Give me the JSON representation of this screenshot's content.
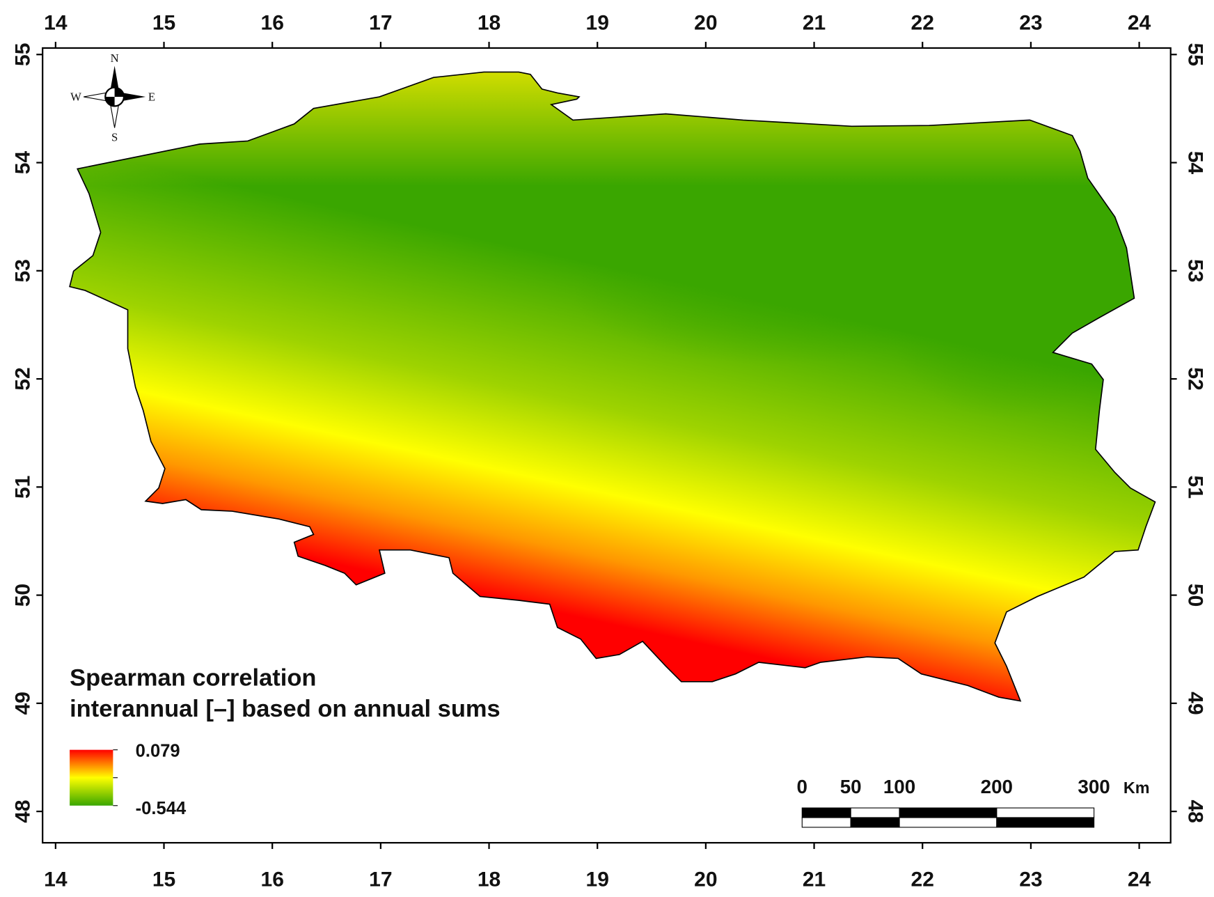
{
  "map": {
    "xlim": [
      13.88,
      24.29
    ],
    "ylim": [
      47.71,
      55.06
    ],
    "xticks": [
      14,
      15,
      16,
      17,
      18,
      19,
      20,
      21,
      22,
      23,
      24
    ],
    "yticks": [
      48,
      49,
      50,
      51,
      52,
      53,
      54,
      55
    ]
  },
  "compass": {
    "north": "N",
    "east": "E",
    "south": "S",
    "west": "W"
  },
  "legend": {
    "title": [
      "Spearman correlation",
      "interannual [–] based on annual sums"
    ],
    "max": 0.079,
    "min": -0.544,
    "colors": [
      "#ff0000",
      "#ffff00",
      "#3aa600"
    ]
  },
  "scale_bar": {
    "ticks": [
      0,
      50,
      100,
      200,
      300
    ],
    "unit": "Km"
  }
}
